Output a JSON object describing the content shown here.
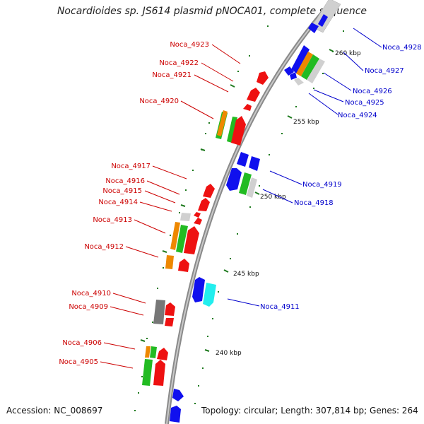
{
  "title": "Nocardioides sp. JS614 plasmid pNOCA01, complete sequence",
  "accession_label": "Accession: NC_008697",
  "summary_label": "Topology: circular; Length: 307,814 bp; Genes: 264",
  "colors": {
    "forward_label": "#cc0000",
    "reverse_label": "#0000cc",
    "tick": "#1e7a1e",
    "backbone": "#8a8a8a"
  },
  "scale_ticks": [
    "260 kbp",
    "255 kbp",
    "250 kbp",
    "245 kbp",
    "240 kbp"
  ],
  "genes_left": [
    "Noca_4923",
    "Noca_4922",
    "Noca_4921",
    "Noca_4920",
    "Noca_4917",
    "Noca_4916",
    "Noca_4915",
    "Noca_4914",
    "Noca_4913",
    "Noca_4912",
    "Noca_4910",
    "Noca_4909",
    "Noca_4906",
    "Noca_4905"
  ],
  "genes_right": [
    "Noca_4928",
    "Noca_4927",
    "Noca_4926",
    "Noca_4925",
    "Noca_4924",
    "Noca_4919",
    "Noca_4918",
    "Noca_4911"
  ]
}
